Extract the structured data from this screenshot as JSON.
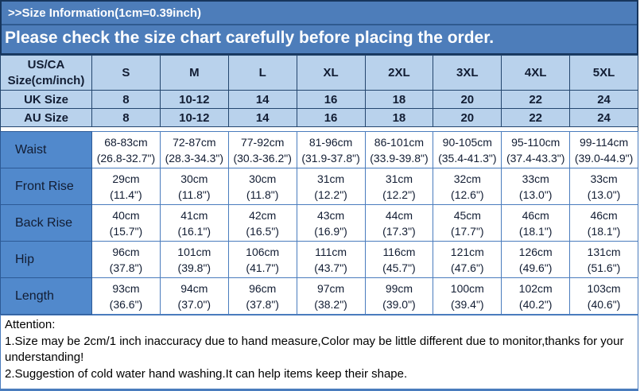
{
  "banner": {
    "line1": ">>Size Information(1cm=0.39inch)",
    "line2": "Please check the size chart carefully before placing the order."
  },
  "colors": {
    "banner_bg": "#4d7dba",
    "banner_border": "#17365d",
    "header_cell_bg": "#b9d2ec",
    "label_cell_bg": "#5189cc",
    "data_grid_border": "#4a7cbd",
    "header_grid_border": "#24466e",
    "banner_text": "#ffffff",
    "table_text": "#121d33"
  },
  "size_table": {
    "corner_line1": "US/CA",
    "corner_line2": "Size(cm/inch)",
    "columns": [
      "S",
      "M",
      "L",
      "XL",
      "2XL",
      "3XL",
      "4XL",
      "5XL"
    ],
    "size_rows": [
      {
        "label": "UK Size",
        "values": [
          "8",
          "10-12",
          "14",
          "16",
          "18",
          "20",
          "22",
          "24"
        ]
      },
      {
        "label": "AU Size",
        "values": [
          "8",
          "10-12",
          "14",
          "16",
          "18",
          "20",
          "22",
          "24"
        ]
      }
    ],
    "measurement_rows": [
      {
        "label": "Waist",
        "cm": [
          "68-83cm",
          "72-87cm",
          "77-92cm",
          "81-96cm",
          "86-101cm",
          "90-105cm",
          "95-110cm",
          "99-114cm"
        ],
        "inch": [
          "(26.8-32.7\")",
          "(28.3-34.3\")",
          "(30.3-36.2\")",
          "(31.9-37.8\")",
          "(33.9-39.8\")",
          "(35.4-41.3\")",
          "(37.4-43.3\")",
          "(39.0-44.9\")"
        ]
      },
      {
        "label": "Front Rise",
        "cm": [
          "29cm",
          "30cm",
          "30cm",
          "31cm",
          "31cm",
          "32cm",
          "33cm",
          "33cm"
        ],
        "inch": [
          "(11.4\")",
          "(11.8\")",
          "(11.8\")",
          "(12.2\")",
          "(12.2\")",
          "(12.6\")",
          "(13.0\")",
          "(13.0\")"
        ]
      },
      {
        "label": "Back Rise",
        "cm": [
          "40cm",
          "41cm",
          "42cm",
          "43cm",
          "44cm",
          "45cm",
          "46cm",
          "46cm"
        ],
        "inch": [
          "(15.7\")",
          "(16.1\")",
          "(16.5\")",
          "(16.9\")",
          "(17.3\")",
          "(17.7\")",
          "(18.1\")",
          "(18.1\")"
        ]
      },
      {
        "label": "Hip",
        "cm": [
          "96cm",
          "101cm",
          "106cm",
          "111cm",
          "116cm",
          "121cm",
          "126cm",
          "131cm"
        ],
        "inch": [
          "(37.8\")",
          "(39.8\")",
          "(41.7\")",
          "(43.7\")",
          "(45.7\")",
          "(47.6\")",
          "(49.6\")",
          "(51.6\")"
        ]
      },
      {
        "label": "Length",
        "cm": [
          "93cm",
          "94cm",
          "96cm",
          "97cm",
          "99cm",
          "100cm",
          "102cm",
          "103cm"
        ],
        "inch": [
          "(36.6\")",
          "(37.0\")",
          "(37.8\")",
          "(38.2\")",
          "(39.0\")",
          "(39.4\")",
          "(40.2\")",
          "(40.6\")"
        ]
      }
    ]
  },
  "attention": {
    "title": "Attention:",
    "notes": [
      "1.Size may be 2cm/1 inch inaccuracy due to hand measure,Color may be little different due to monitor,thanks for your understanding!",
      "2.Suggestion of cold water hand washing.It can help items keep their shape."
    ]
  }
}
